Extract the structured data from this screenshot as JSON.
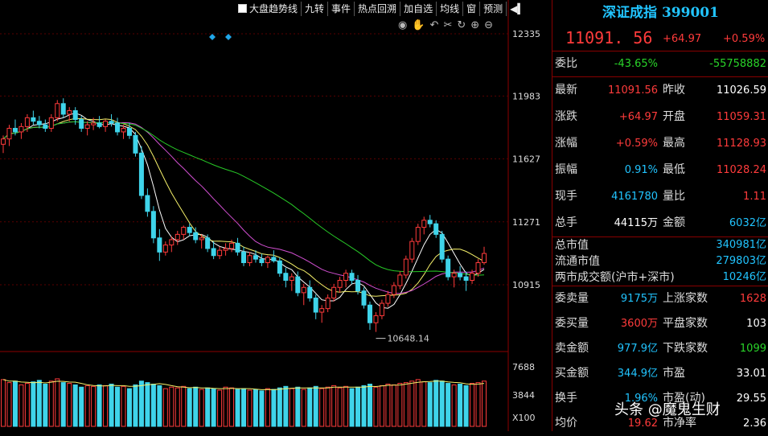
{
  "toolbar": {
    "items": [
      "大盘趋势线",
      "九转",
      "事件",
      "热点回溯",
      "加自选",
      "均线",
      "窗",
      "预测"
    ],
    "play_icon": "play-icon"
  },
  "tools": [
    "eye-icon",
    "hand-icon",
    "undo-icon",
    "scissors-icon",
    "refresh-icon",
    "zoom-in-icon",
    "zoom-out-icon"
  ],
  "chart_data": {
    "type": "candlestick",
    "y_ticks": [
      "12335",
      "11983",
      "11627",
      "11271",
      "10915"
    ],
    "vol_ticks": [
      "7688",
      "3844",
      "X100"
    ],
    "low_annotation": "10648.14",
    "candles": [
      [
        11710,
        11760,
        11660,
        11740
      ],
      [
        11740,
        11820,
        11700,
        11800
      ],
      [
        11800,
        11850,
        11760,
        11780
      ],
      [
        11780,
        11830,
        11740,
        11810
      ],
      [
        11810,
        11880,
        11780,
        11860
      ],
      [
        11860,
        11900,
        11820,
        11840
      ],
      [
        11840,
        11870,
        11800,
        11820
      ],
      [
        11820,
        11850,
        11780,
        11800
      ],
      [
        11800,
        11880,
        11780,
        11860
      ],
      [
        11860,
        11960,
        11840,
        11940
      ],
      [
        11940,
        11970,
        11860,
        11880
      ],
      [
        11880,
        11920,
        11840,
        11900
      ],
      [
        11900,
        11920,
        11820,
        11850
      ],
      [
        11850,
        11870,
        11780,
        11800
      ],
      [
        11800,
        11840,
        11760,
        11820
      ],
      [
        11820,
        11860,
        11790,
        11830
      ],
      [
        11830,
        11870,
        11800,
        11810
      ],
      [
        11810,
        11850,
        11780,
        11840
      ],
      [
        11840,
        11880,
        11810,
        11830
      ],
      [
        11830,
        11860,
        11760,
        11780
      ],
      [
        11780,
        11820,
        11740,
        11800
      ],
      [
        11800,
        11830,
        11740,
        11760
      ],
      [
        11760,
        11780,
        11640,
        11660
      ],
      [
        11660,
        11700,
        11400,
        11420
      ],
      [
        11420,
        11460,
        11300,
        11330
      ],
      [
        11330,
        11360,
        11150,
        11180
      ],
      [
        11180,
        11230,
        11050,
        11100
      ],
      [
        11100,
        11160,
        11080,
        11140
      ],
      [
        11140,
        11190,
        11100,
        11170
      ],
      [
        11170,
        11220,
        11140,
        11200
      ],
      [
        11200,
        11250,
        11170,
        11240
      ],
      [
        11240,
        11260,
        11190,
        11210
      ],
      [
        11210,
        11240,
        11150,
        11170
      ],
      [
        11170,
        11200,
        11120,
        11180
      ],
      [
        11180,
        11200,
        11100,
        11120
      ],
      [
        11120,
        11160,
        11060,
        11080
      ],
      [
        11080,
        11130,
        11060,
        11110
      ],
      [
        11110,
        11150,
        11080,
        11120
      ],
      [
        11120,
        11170,
        11100,
        11150
      ],
      [
        11150,
        11180,
        11080,
        11100
      ],
      [
        11100,
        11130,
        11020,
        11040
      ],
      [
        11040,
        11100,
        11020,
        11080
      ],
      [
        11080,
        11110,
        11040,
        11060
      ],
      [
        11060,
        11090,
        11020,
        11040
      ],
      [
        11040,
        11080,
        11010,
        11070
      ],
      [
        11070,
        11110,
        11040,
        11050
      ],
      [
        11050,
        11070,
        10960,
        10980
      ],
      [
        10980,
        11010,
        10900,
        10940
      ],
      [
        10940,
        10980,
        10880,
        10960
      ],
      [
        10960,
        10990,
        10850,
        10870
      ],
      [
        10870,
        10920,
        10800,
        10900
      ],
      [
        10900,
        10940,
        10820,
        10840
      ],
      [
        10840,
        10860,
        10720,
        10760
      ],
      [
        10760,
        10800,
        10700,
        10780
      ],
      [
        10780,
        10860,
        10760,
        10840
      ],
      [
        10840,
        10920,
        10820,
        10900
      ],
      [
        10900,
        10960,
        10870,
        10940
      ],
      [
        10940,
        11000,
        10900,
        10980
      ],
      [
        10980,
        11000,
        10920,
        10940
      ],
      [
        10940,
        10970,
        10860,
        10880
      ],
      [
        10880,
        10900,
        10780,
        10800
      ],
      [
        10800,
        10820,
        10660,
        10700
      ],
      [
        10700,
        10760,
        10648,
        10740
      ],
      [
        10740,
        10830,
        10720,
        10810
      ],
      [
        10810,
        10880,
        10790,
        10860
      ],
      [
        10860,
        10930,
        10840,
        10910
      ],
      [
        10910,
        10990,
        10890,
        10970
      ],
      [
        10970,
        11080,
        10950,
        11060
      ],
      [
        11060,
        11180,
        11040,
        11160
      ],
      [
        11160,
        11260,
        11140,
        11240
      ],
      [
        11240,
        11300,
        11200,
        11280
      ],
      [
        11280,
        11310,
        11240,
        11260
      ],
      [
        11260,
        11280,
        11180,
        11200
      ],
      [
        11200,
        11220,
        11040,
        11060
      ],
      [
        11060,
        11080,
        10940,
        10960
      ],
      [
        10960,
        11000,
        10900,
        10980
      ],
      [
        10980,
        11020,
        10940,
        10960
      ],
      [
        10960,
        10990,
        10880,
        10940
      ],
      [
        10940,
        11000,
        10920,
        10980
      ],
      [
        10980,
        11060,
        10960,
        11040
      ],
      [
        11040,
        11130,
        11028,
        11092
      ]
    ],
    "volumes": [
      62,
      58,
      60,
      55,
      57,
      59,
      61,
      56,
      60,
      63,
      58,
      57,
      55,
      52,
      54,
      53,
      55,
      54,
      56,
      52,
      53,
      50,
      55,
      60,
      58,
      56,
      54,
      50,
      52,
      51,
      53,
      50,
      52,
      49,
      51,
      50,
      48,
      52,
      51,
      49,
      50,
      48,
      49,
      47,
      50,
      49,
      51,
      53,
      50,
      52,
      49,
      51,
      53,
      50,
      52,
      54,
      51,
      53,
      50,
      52,
      54,
      56,
      52,
      54,
      56,
      55,
      57,
      58,
      60,
      62,
      59,
      58,
      61,
      60,
      57,
      55,
      56,
      54,
      57,
      58,
      60
    ],
    "ma_colors": {
      "ma5": "#ffffff",
      "ma10": "#f5f06a",
      "ma20": "#d24fd2",
      "ma60": "#27c927"
    }
  },
  "panel": {
    "title": "深证成指 399001",
    "price": "11091. 56",
    "change": "+64.97",
    "change_pct": "+0.59%",
    "webi": {
      "label": "委比",
      "v1": "-43.65%",
      "v2": "-55758882"
    },
    "rows": [
      {
        "l1": "最新",
        "v1": "11091.56",
        "c1": "red",
        "l2": "昨收",
        "v2": "11026.59",
        "c2": "white"
      },
      {
        "l1": "涨跌",
        "v1": "+64.97",
        "c1": "red",
        "l2": "开盘",
        "v2": "11059.31",
        "c2": "red"
      },
      {
        "l1": "涨幅",
        "v1": "+0.59%",
        "c1": "red",
        "l2": "最高",
        "v2": "11128.93",
        "c2": "red"
      },
      {
        "l1": "振幅",
        "v1": "0.91%",
        "c1": "cyan",
        "l2": "最低",
        "v2": "11028.24",
        "c2": "red"
      },
      {
        "l1": "现手",
        "v1": "4161780",
        "c1": "cyan",
        "l2": "量比",
        "v2": "1.11",
        "c2": "red"
      },
      {
        "l1": "总手",
        "v1": "44115万",
        "c1": "white",
        "l2": "金额",
        "v2": "6032亿",
        "c2": "cyan"
      }
    ],
    "market": [
      {
        "label": "总市值",
        "value": "340981亿"
      },
      {
        "label": "流通市值",
        "value": "279803亿"
      },
      {
        "label": "两市成交额(沪市+深市)",
        "value": "10246亿"
      }
    ],
    "bottom": [
      {
        "l1": "委卖量",
        "v1": "9175万",
        "c1": "cyan",
        "l2": "上涨家数",
        "v2": "1628",
        "c2": "red"
      },
      {
        "l1": "委买量",
        "v1": "3600万",
        "c1": "red",
        "l2": "平盘家数",
        "v2": "103",
        "c2": "white"
      },
      {
        "l1": "卖金额",
        "v1": "977.9亿",
        "c1": "cyan",
        "l2": "下跌家数",
        "v2": "1099",
        "c2": "green"
      },
      {
        "l1": "买金额",
        "v1": "344.9亿",
        "c1": "cyan",
        "l2": "市盈",
        "v2": "33.01",
        "c2": "white"
      },
      {
        "l1": "换手",
        "v1": "1.96%",
        "c1": "cyan",
        "l2": "市盈(动)",
        "v2": "29.55",
        "c2": "white"
      },
      {
        "l1": "均价",
        "v1": "19.62",
        "c1": "red",
        "l2": "市净率",
        "v2": "2.36",
        "c2": "white"
      }
    ]
  },
  "watermark": "头条 @魔鬼生财"
}
